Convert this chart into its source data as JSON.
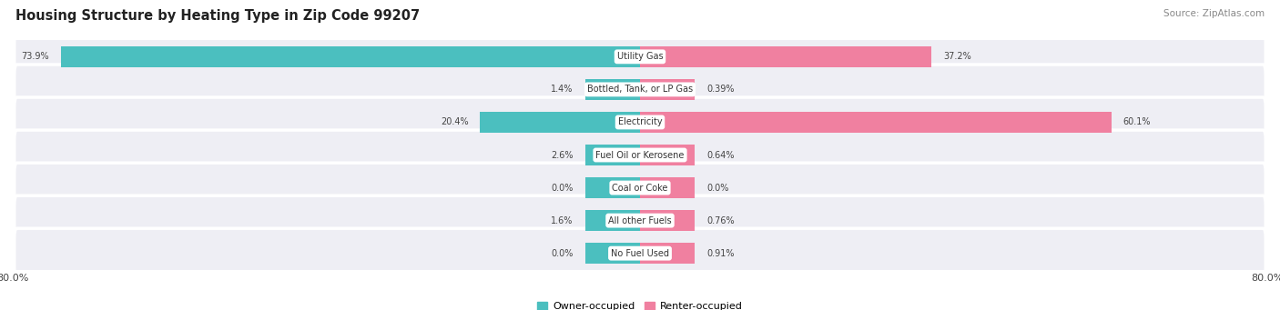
{
  "title": "Housing Structure by Heating Type in Zip Code 99207",
  "source": "Source: ZipAtlas.com",
  "categories": [
    "Utility Gas",
    "Bottled, Tank, or LP Gas",
    "Electricity",
    "Fuel Oil or Kerosene",
    "Coal or Coke",
    "All other Fuels",
    "No Fuel Used"
  ],
  "owner_values": [
    73.9,
    1.4,
    20.4,
    2.6,
    0.0,
    1.6,
    0.0
  ],
  "renter_values": [
    37.2,
    0.39,
    60.1,
    0.64,
    0.0,
    0.76,
    0.91
  ],
  "owner_color": "#4BBFBF",
  "renter_color": "#F080A0",
  "owner_label": "Owner-occupied",
  "renter_label": "Renter-occupied",
  "axis_max": 80.0,
  "axis_min": -80.0,
  "x_tick_left": "80.0%",
  "x_tick_right": "80.0%",
  "bg_row": "#EEEEF4",
  "bg_chart": "#ffffff",
  "label_color": "#444444",
  "cat_label_color": "#333333",
  "title_fontsize": 10.5,
  "source_fontsize": 7.5,
  "bar_height": 0.62,
  "min_bar_width": 7.0,
  "cat_label_fontsize": 7.0,
  "val_label_fontsize": 7.0
}
